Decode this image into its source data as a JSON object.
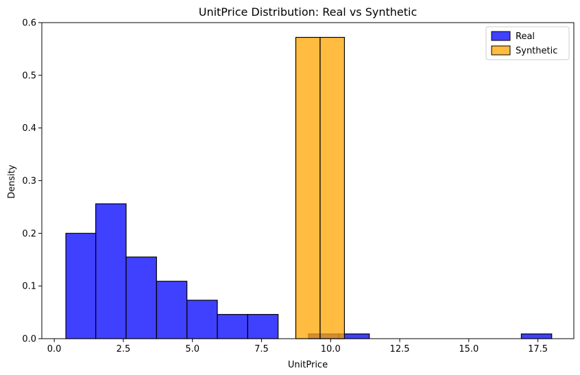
{
  "chart_data": {
    "type": "bar",
    "title": "UnitPrice Distribution: Real vs Synthetic",
    "xlabel": "UnitPrice",
    "ylabel": "Density",
    "xlim": [
      -0.45,
      18.8
    ],
    "ylim": [
      0,
      0.6
    ],
    "xticks": [
      0.0,
      2.5,
      5.0,
      7.5,
      10.0,
      12.5,
      15.0,
      17.5
    ],
    "xtick_labels": [
      "0.0",
      "2.5",
      "5.0",
      "7.5",
      "10.0",
      "12.5",
      "15.0",
      "17.5"
    ],
    "yticks": [
      0.0,
      0.1,
      0.2,
      0.3,
      0.4,
      0.5,
      0.6
    ],
    "ytick_labels": [
      "0.0",
      "0.1",
      "0.2",
      "0.3",
      "0.4",
      "0.5",
      "0.6"
    ],
    "grid": false,
    "legend_position": "top-right",
    "series": [
      {
        "name": "Real",
        "color": "#0000ff",
        "bins": [
          {
            "x0": 0.42,
            "x1": 1.5,
            "density": 0.2
          },
          {
            "x0": 1.5,
            "x1": 2.6,
            "density": 0.256
          },
          {
            "x0": 2.6,
            "x1": 3.7,
            "density": 0.155
          },
          {
            "x0": 3.7,
            "x1": 4.8,
            "density": 0.109
          },
          {
            "x0": 4.8,
            "x1": 5.9,
            "density": 0.073
          },
          {
            "x0": 5.9,
            "x1": 7.0,
            "density": 0.046
          },
          {
            "x0": 7.0,
            "x1": 8.1,
            "density": 0.046
          },
          {
            "x0": 8.1,
            "x1": 9.2,
            "density": 0.0
          },
          {
            "x0": 9.2,
            "x1": 10.3,
            "density": 0.009
          },
          {
            "x0": 10.3,
            "x1": 11.4,
            "density": 0.009
          },
          {
            "x0": 16.9,
            "x1": 18.0,
            "density": 0.009
          }
        ]
      },
      {
        "name": "Synthetic",
        "color": "#ffa500",
        "bins": [
          {
            "x0": 8.74,
            "x1": 9.62,
            "density": 0.572
          },
          {
            "x0": 9.62,
            "x1": 10.5,
            "density": 0.572
          }
        ]
      }
    ]
  }
}
